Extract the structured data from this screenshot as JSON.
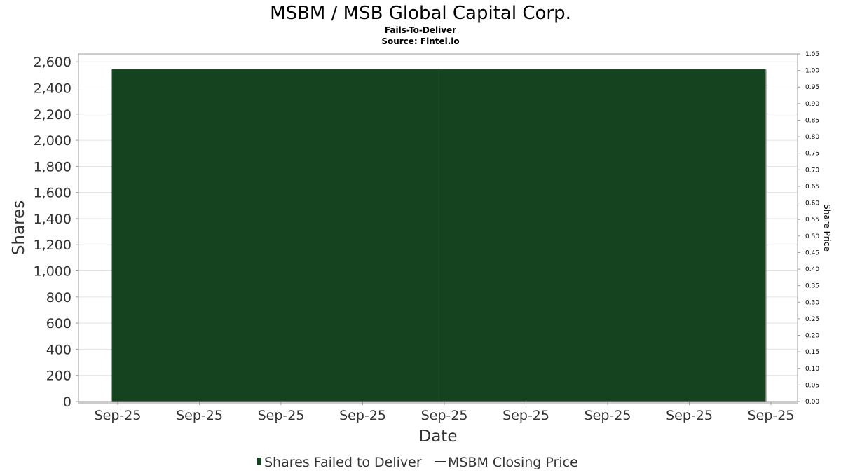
{
  "chart_data": {
    "type": "bar",
    "title": "MSBM / MSB Global Capital Corp.",
    "subtitle": "Fails-To-Deliver",
    "source": "Source: Fintel.io",
    "xlabel": "Date",
    "ylabel": "Shares",
    "y2label": "Share Price",
    "x_tick_labels": [
      "Sep-25",
      "Sep-25",
      "Sep-25",
      "Sep-25",
      "Sep-25",
      "Sep-25",
      "Sep-25",
      "Sep-25",
      "Sep-25"
    ],
    "ylim": [
      0,
      2660
    ],
    "y_ticks": [
      0,
      200,
      400,
      600,
      800,
      1000,
      1200,
      1400,
      1600,
      1800,
      2000,
      2200,
      2400,
      2600
    ],
    "y_tick_labels": [
      "0",
      "200",
      "400",
      "600",
      "800",
      "1,000",
      "1,200",
      "1,400",
      "1,600",
      "1,800",
      "2,000",
      "2,200",
      "2,400",
      "2,600"
    ],
    "y2lim": [
      0,
      1.05
    ],
    "y2_ticks": [
      0,
      0.05,
      0.1,
      0.15,
      0.2,
      0.25,
      0.3,
      0.35,
      0.4,
      0.45,
      0.5,
      0.55,
      0.6,
      0.65,
      0.7,
      0.75,
      0.8,
      0.85,
      0.9,
      0.95,
      1.0,
      1.05
    ],
    "y2_tick_labels": [
      "0.00",
      "0.05",
      "0.10",
      "0.15",
      "0.20",
      "0.25",
      "0.30",
      "0.35",
      "0.40",
      "0.45",
      "0.50",
      "0.55",
      "0.60",
      "0.65",
      "0.70",
      "0.75",
      "0.80",
      "0.85",
      "0.90",
      "0.95",
      "1.00",
      "1.05"
    ],
    "series": [
      {
        "name": "Shares Failed to Deliver",
        "kind": "bar",
        "color": "#154320",
        "values": [
          2540,
          2540
        ]
      },
      {
        "name": "MSBM Closing Price",
        "kind": "line",
        "color": "#333333",
        "values": []
      }
    ],
    "grid": true,
    "legend_position": "bottom"
  }
}
